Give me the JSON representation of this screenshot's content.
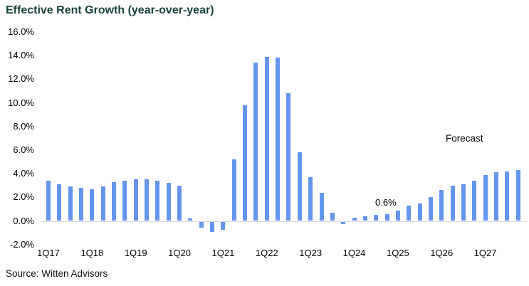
{
  "title": "Effective Rent Growth (year-over-year)",
  "source": "Source: Witten Advisors",
  "colors": {
    "bar": "#6495ED",
    "title": "#17433B",
    "axis_line": "#D9D9D9",
    "text": "#000000"
  },
  "chart_data": {
    "type": "bar",
    "title": "Effective Rent Growth (year-over-year)",
    "categories": [
      "1Q17",
      "2Q17",
      "3Q17",
      "4Q17",
      "1Q18",
      "2Q18",
      "3Q18",
      "4Q18",
      "1Q19",
      "2Q19",
      "3Q19",
      "4Q19",
      "1Q20",
      "2Q20",
      "3Q20",
      "4Q20",
      "1Q21",
      "2Q21",
      "3Q21",
      "4Q21",
      "1Q22",
      "2Q22",
      "3Q22",
      "4Q22",
      "1Q23",
      "2Q23",
      "3Q23",
      "4Q23",
      "1Q24",
      "2Q24",
      "3Q24",
      "4Q24",
      "1Q25",
      "2Q25",
      "3Q25",
      "4Q25",
      "1Q26",
      "2Q26",
      "3Q26",
      "4Q26",
      "1Q27",
      "2Q27",
      "3Q27",
      "4Q27"
    ],
    "values": [
      3.4,
      3.1,
      2.9,
      2.8,
      2.7,
      2.9,
      3.3,
      3.4,
      3.5,
      3.5,
      3.4,
      3.2,
      3.0,
      0.2,
      -0.5,
      -0.9,
      -0.7,
      5.2,
      9.8,
      13.4,
      13.9,
      13.8,
      10.8,
      5.8,
      3.7,
      2.4,
      0.7,
      -0.2,
      0.3,
      0.4,
      0.5,
      0.6,
      0.9,
      1.3,
      1.5,
      2.0,
      2.6,
      3.0,
      3.1,
      3.4,
      3.9,
      4.1,
      4.2,
      4.3
    ],
    "x_tick_labels": [
      "1Q17",
      "1Q18",
      "1Q19",
      "1Q20",
      "1Q21",
      "1Q22",
      "1Q23",
      "1Q24",
      "1Q25",
      "1Q26",
      "1Q27"
    ],
    "y_tick_labels": [
      "16.0%",
      "14.0%",
      "12.0%",
      "10.0%",
      "8.0%",
      "6.0%",
      "4.0%",
      "2.0%",
      "0.0%",
      "-2.0%"
    ],
    "y_tick_values": [
      16,
      14,
      12,
      10,
      8,
      6,
      4,
      2,
      0,
      -2
    ],
    "ylim": [
      -2,
      16
    ],
    "grid": false,
    "legend_position": "none",
    "annotations": [
      {
        "text": "0.6%",
        "target_category": "4Q24"
      },
      {
        "text": "Forecast"
      }
    ]
  }
}
